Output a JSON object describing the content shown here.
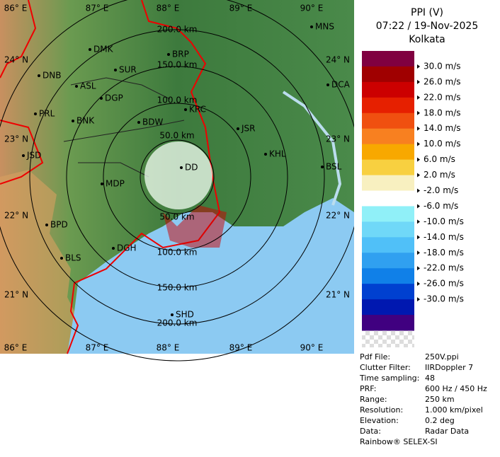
{
  "map": {
    "lon_top": [
      "86° E",
      "87° E",
      "88° E",
      "89° E",
      "90° E"
    ],
    "lon_bottom": [
      "86° E",
      "87° E",
      "88° E",
      "89° E",
      "90° E"
    ],
    "lat_left": [
      "24° N",
      "23° N",
      "22° N",
      "21° N"
    ],
    "lat_right": [
      "24° N",
      "23° N",
      "22° N",
      "21° N"
    ],
    "range_top": [
      "200.0 km",
      "150.0 km",
      "100.0 km",
      "50.0 km"
    ],
    "range_bottom": [
      "50.0 km",
      "100.0 km",
      "150.0 km",
      "200.0 km"
    ],
    "stations": [
      {
        "label": "MNS"
      },
      {
        "label": "DMK"
      },
      {
        "label": "BRP"
      },
      {
        "label": "DNB"
      },
      {
        "label": "SUR"
      },
      {
        "label": "ASL"
      },
      {
        "label": "DCA"
      },
      {
        "label": "DGP"
      },
      {
        "label": "KRC"
      },
      {
        "label": "PRL"
      },
      {
        "label": "BNK"
      },
      {
        "label": "BDW"
      },
      {
        "label": "JSR"
      },
      {
        "label": "KHL"
      },
      {
        "label": "JSD"
      },
      {
        "label": "BSL"
      },
      {
        "label": "DD"
      },
      {
        "label": "MDP"
      },
      {
        "label": "BPD"
      },
      {
        "label": "DGH"
      },
      {
        "label": "BLS"
      },
      {
        "label": "SHD"
      }
    ]
  },
  "legend": {
    "title": "PPI (V)",
    "time": "07:22 / 19-Nov-2025",
    "site": "Kolkata",
    "colors": [
      "#800040",
      "#a00000",
      "#cc0000",
      "#e62000",
      "#f05010",
      "#f88020",
      "#f8a800",
      "#f8d040",
      "#f8f0c0",
      "#ffffff",
      "#90f0f8",
      "#70d8f8",
      "#50c0f8",
      "#30a0f0",
      "#1080e8",
      "#0040d0",
      "#0018b0",
      "#400080"
    ],
    "labels": [
      "30.0 m/s",
      "26.0 m/s",
      "22.0 m/s",
      "18.0 m/s",
      "14.0 m/s",
      "10.0 m/s",
      "6.0 m/s",
      "2.0 m/s",
      "-2.0 m/s",
      "-6.0 m/s",
      "-10.0 m/s",
      "-14.0 m/s",
      "-18.0 m/s",
      "-22.0 m/s",
      "-26.0 m/s",
      "-30.0 m/s"
    ]
  },
  "info": {
    "rows": [
      [
        "Pdf File:",
        "250V.ppi"
      ],
      [
        "Clutter Filter:",
        "IIRDoppler 7"
      ],
      [
        "Time sampling:",
        "48"
      ],
      [
        "PRF:",
        "600 Hz / 450 Hz"
      ],
      [
        "Range:",
        "250 km"
      ],
      [
        "Resolution:",
        "1.000 km/pixel"
      ],
      [
        "Elevation:",
        "0.2 deg"
      ],
      [
        "Data:",
        "Radar Data"
      ]
    ],
    "footer": "Rainbow® SELEX-SI"
  }
}
